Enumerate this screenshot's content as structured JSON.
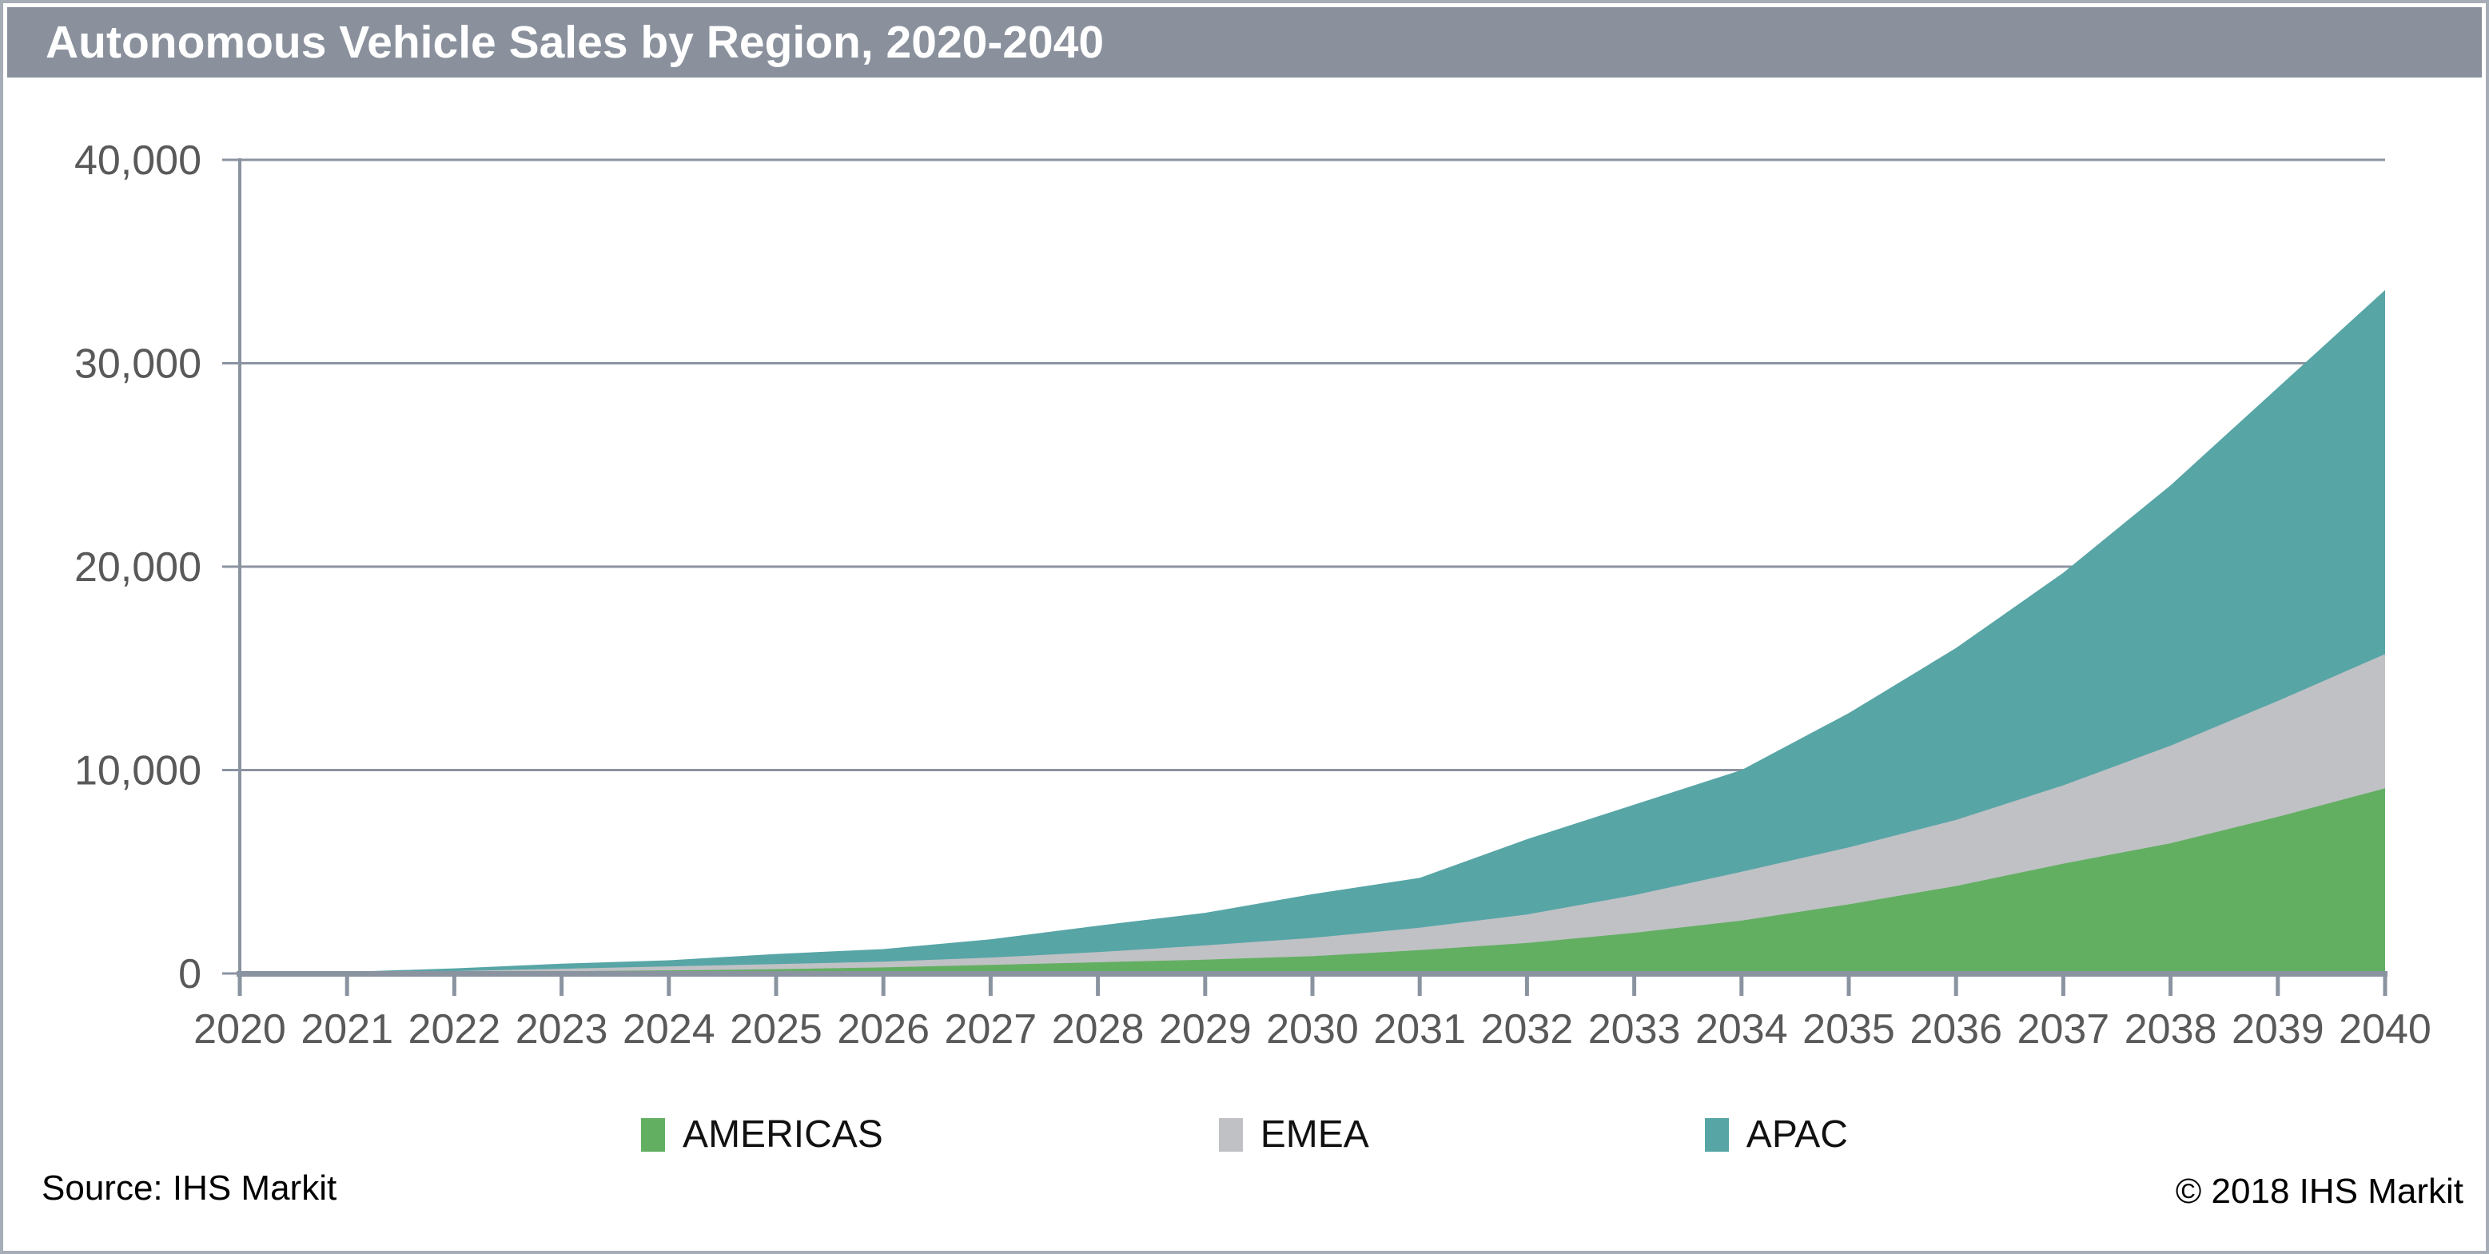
{
  "title": "Autonomous Vehicle Sales by Region, 2020-2040",
  "source_note": "Source: IHS Markit",
  "copyright_note": "© 2018 IHS Markit",
  "legend": [
    {
      "label": "AMERICAS",
      "color": "#63af62"
    },
    {
      "label": "EMEA",
      "color": "#bfc1c5"
    },
    {
      "label": "APAC",
      "color": "#58a5a6"
    }
  ],
  "colors": {
    "title_bar": "#8a919d",
    "title_text": "#ffffff",
    "gridline": "#8c93a0",
    "axis": "#8a93a0",
    "tick_label": "#595959",
    "americas": "#63af62",
    "emea": "#bfc1c5",
    "apac": "#58a5a6",
    "outer_border": "#a7adb6"
  },
  "chart_data": {
    "type": "area",
    "stacked": true,
    "title": "Autonomous Vehicle Sales by Region, 2020-2040",
    "x": [
      2020,
      2021,
      2022,
      2023,
      2024,
      2025,
      2026,
      2027,
      2028,
      2029,
      2030,
      2031,
      2032,
      2033,
      2034,
      2035,
      2036,
      2037,
      2038,
      2039,
      2040
    ],
    "series": [
      {
        "name": "AMERICAS",
        "color": "#63af62",
        "values": [
          10,
          30,
          60,
          110,
          150,
          210,
          300,
          420,
          550,
          680,
          850,
          1150,
          1500,
          2000,
          2600,
          3400,
          4300,
          5400,
          6400,
          7700,
          9100
        ]
      },
      {
        "name": "EMEA",
        "color": "#bfc1c5",
        "values": [
          5,
          20,
          60,
          120,
          200,
          250,
          280,
          360,
          500,
          700,
          900,
          1100,
          1400,
          1850,
          2400,
          2800,
          3250,
          3850,
          4800,
          5700,
          6600
        ]
      },
      {
        "name": "APAC",
        "color": "#58a5a6",
        "values": [
          5,
          30,
          130,
          250,
          300,
          500,
          620,
          900,
          1300,
          1600,
          2150,
          2450,
          3700,
          4450,
          5000,
          6600,
          8450,
          10450,
          12800,
          15400,
          17900
        ]
      }
    ],
    "totals": [
      20,
      80,
      250,
      480,
      650,
      960,
      1200,
      1680,
      2350,
      2980,
      3900,
      4700,
      6600,
      8300,
      10000,
      12800,
      16000,
      19700,
      24000,
      28800,
      33600
    ],
    "xlabel": "",
    "ylabel": "",
    "ylim": [
      0,
      40000
    ],
    "y_ticks": [
      0,
      10000,
      20000,
      30000,
      40000
    ],
    "y_tick_labels": [
      "0",
      "10,000",
      "20,000",
      "30,000",
      "40,000"
    ],
    "grid": "horizontal",
    "legend_position": "bottom"
  }
}
